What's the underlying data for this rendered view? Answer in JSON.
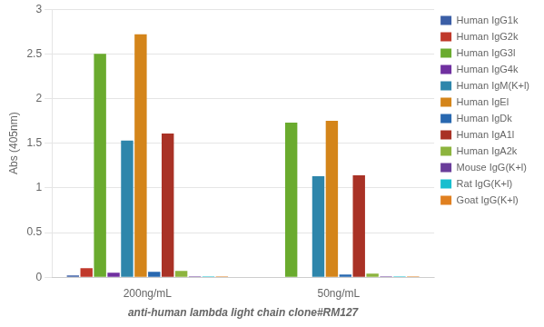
{
  "chart_data": {
    "type": "bar",
    "categories": [
      "200ng/mL",
      "50ng/mL"
    ],
    "series": [
      {
        "name": "Human IgG1k",
        "color": "#3B5EA6",
        "values": [
          0.02,
          0.0
        ]
      },
      {
        "name": "Human IgG2k",
        "color": "#C0392B",
        "values": [
          0.1,
          0.0
        ]
      },
      {
        "name": "Human IgG3l",
        "color": "#6AAB2E",
        "values": [
          2.5,
          1.73
        ]
      },
      {
        "name": "Human IgG4k",
        "color": "#7030A0",
        "values": [
          0.05,
          0.0
        ]
      },
      {
        "name": "Human IgM(K+l)",
        "color": "#2E86AB",
        "values": [
          1.53,
          1.13
        ]
      },
      {
        "name": "Human IgEl",
        "color": "#D4851A",
        "values": [
          2.72,
          1.75
        ]
      },
      {
        "name": "Human IgDk",
        "color": "#2868B0",
        "values": [
          0.06,
          0.03
        ]
      },
      {
        "name": "Human IgA1l",
        "color": "#A93226",
        "values": [
          1.61,
          1.14
        ]
      },
      {
        "name": "Human IgA2k",
        "color": "#8DB43E",
        "values": [
          0.07,
          0.04
        ]
      },
      {
        "name": "Mouse IgG(K+l)",
        "color": "#6A3D9A",
        "values": [
          0.01,
          0.01
        ]
      },
      {
        "name": "Rat IgG(K+l)",
        "color": "#17BECF",
        "values": [
          0.01,
          0.01
        ]
      },
      {
        "name": "Goat IgG(K+l)",
        "color": "#E08020",
        "values": [
          0.01,
          0.01
        ]
      }
    ],
    "xlabel": "anti-human lambda light chain clone#RM127",
    "ylabel": "Abs (405nm)",
    "ylim": [
      0,
      3.0
    ],
    "yticks": [
      0,
      0.5,
      1.0,
      1.5,
      2.0,
      2.5,
      3
    ],
    "grid": true,
    "legend": "right"
  }
}
